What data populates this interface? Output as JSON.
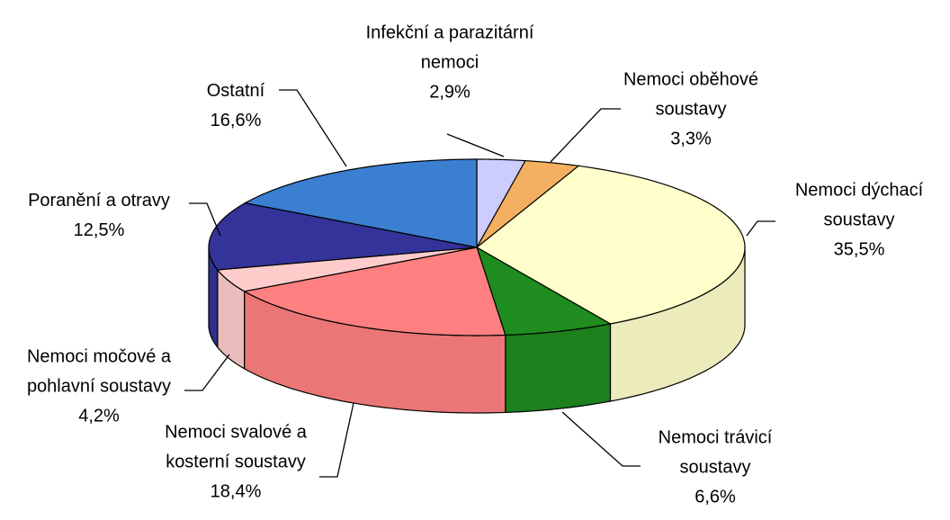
{
  "chart_data": {
    "type": "pie3d",
    "categories": [
      "Infekční a parazitární nemoci",
      "Nemoci oběhové soustavy",
      "Nemoci dýchací soustavy",
      "Nemoci trávicí soustavy",
      "Nemoci svalové a kosterní soustavy",
      "Nemoci močové a pohlavní soustavy",
      "Poranění a otravy",
      "Ostatní"
    ],
    "values": [
      2.9,
      3.3,
      35.5,
      6.6,
      18.4,
      4.2,
      12.5,
      16.6
    ],
    "value_labels": [
      "2,9%",
      "3,3%",
      "35,5%",
      "6,6%",
      "18,4%",
      "4,2%",
      "12,5%",
      "16,6%"
    ],
    "colors": [
      "#ccccff",
      "#f4b060",
      "#ffffcc",
      "#1e8c1e",
      "#ff8080",
      "#ffcccc",
      "#333399",
      "#3a7fd0"
    ]
  }
}
